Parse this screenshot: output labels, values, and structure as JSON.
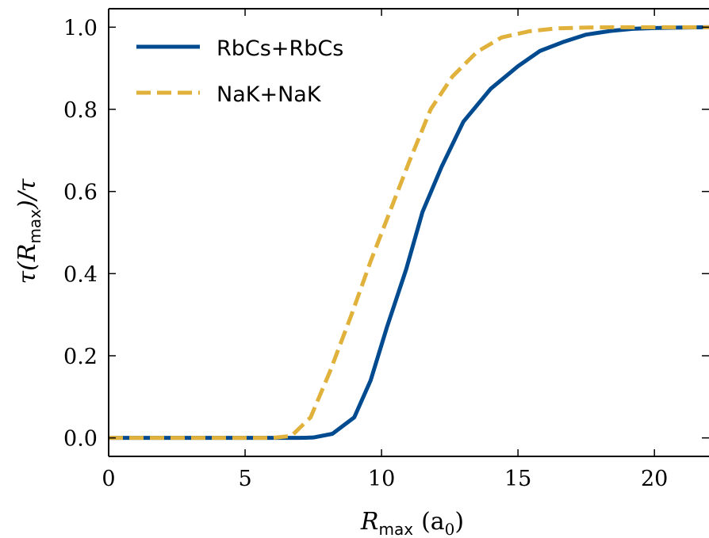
{
  "chart_data": {
    "type": "line",
    "title": "",
    "xlabel": "R_max (a_0)",
    "ylabel": "τ(R_max)/τ",
    "xlabel_parts": {
      "sym": "R",
      "sub": "max",
      "rest": "(a",
      "sub2": "0",
      "close": ")"
    },
    "ylabel_parts": {
      "pre": "τ(R",
      "sub": "max",
      "post": ")/τ"
    },
    "xlim": [
      0,
      22
    ],
    "ylim": [
      -0.045,
      1.045
    ],
    "xticks": [
      0,
      5,
      10,
      15,
      20
    ],
    "xtick_labels": [
      "0",
      "5",
      "10",
      "15",
      "20"
    ],
    "yticks": [
      0.0,
      0.2,
      0.4,
      0.6,
      0.8,
      1.0
    ],
    "ytick_labels": [
      "0.0",
      "0.2",
      "0.4",
      "0.6",
      "0.8",
      "1.0"
    ],
    "grid": false,
    "legend_position": "top-left",
    "series": [
      {
        "name": "RbCs+RbCs",
        "color": "#004a8f",
        "style": "solid",
        "x": [
          0,
          1,
          2,
          3,
          4,
          5,
          6,
          7,
          7.5,
          8.2,
          9.0,
          9.6,
          10.2,
          10.9,
          11.5,
          12.2,
          13.0,
          14.0,
          15.0,
          15.8,
          16.7,
          17.5,
          18.4,
          19.2,
          20.0,
          20.8,
          22.0
        ],
        "y": [
          0,
          0,
          0,
          0,
          0,
          0,
          0,
          0,
          0.001,
          0.01,
          0.05,
          0.14,
          0.27,
          0.41,
          0.55,
          0.66,
          0.77,
          0.85,
          0.905,
          0.942,
          0.965,
          0.982,
          0.991,
          0.996,
          0.998,
          0.999,
          1.0
        ]
      },
      {
        "name": "NaK+NaK",
        "color": "#e0b23c",
        "style": "dashed",
        "x": [
          0,
          1,
          2,
          3,
          4,
          5,
          6,
          6.7,
          7.4,
          8.1,
          8.9,
          9.6,
          10.3,
          11.0,
          11.8,
          12.6,
          13.5,
          14.4,
          15.4,
          16.4,
          17.4,
          18.5,
          20.0,
          22.0
        ],
        "y": [
          0,
          0,
          0,
          0,
          0,
          0,
          0,
          0.005,
          0.05,
          0.16,
          0.3,
          0.43,
          0.55,
          0.67,
          0.8,
          0.88,
          0.94,
          0.975,
          0.99,
          0.997,
          0.999,
          1.0,
          1.0,
          1.0
        ]
      }
    ]
  }
}
